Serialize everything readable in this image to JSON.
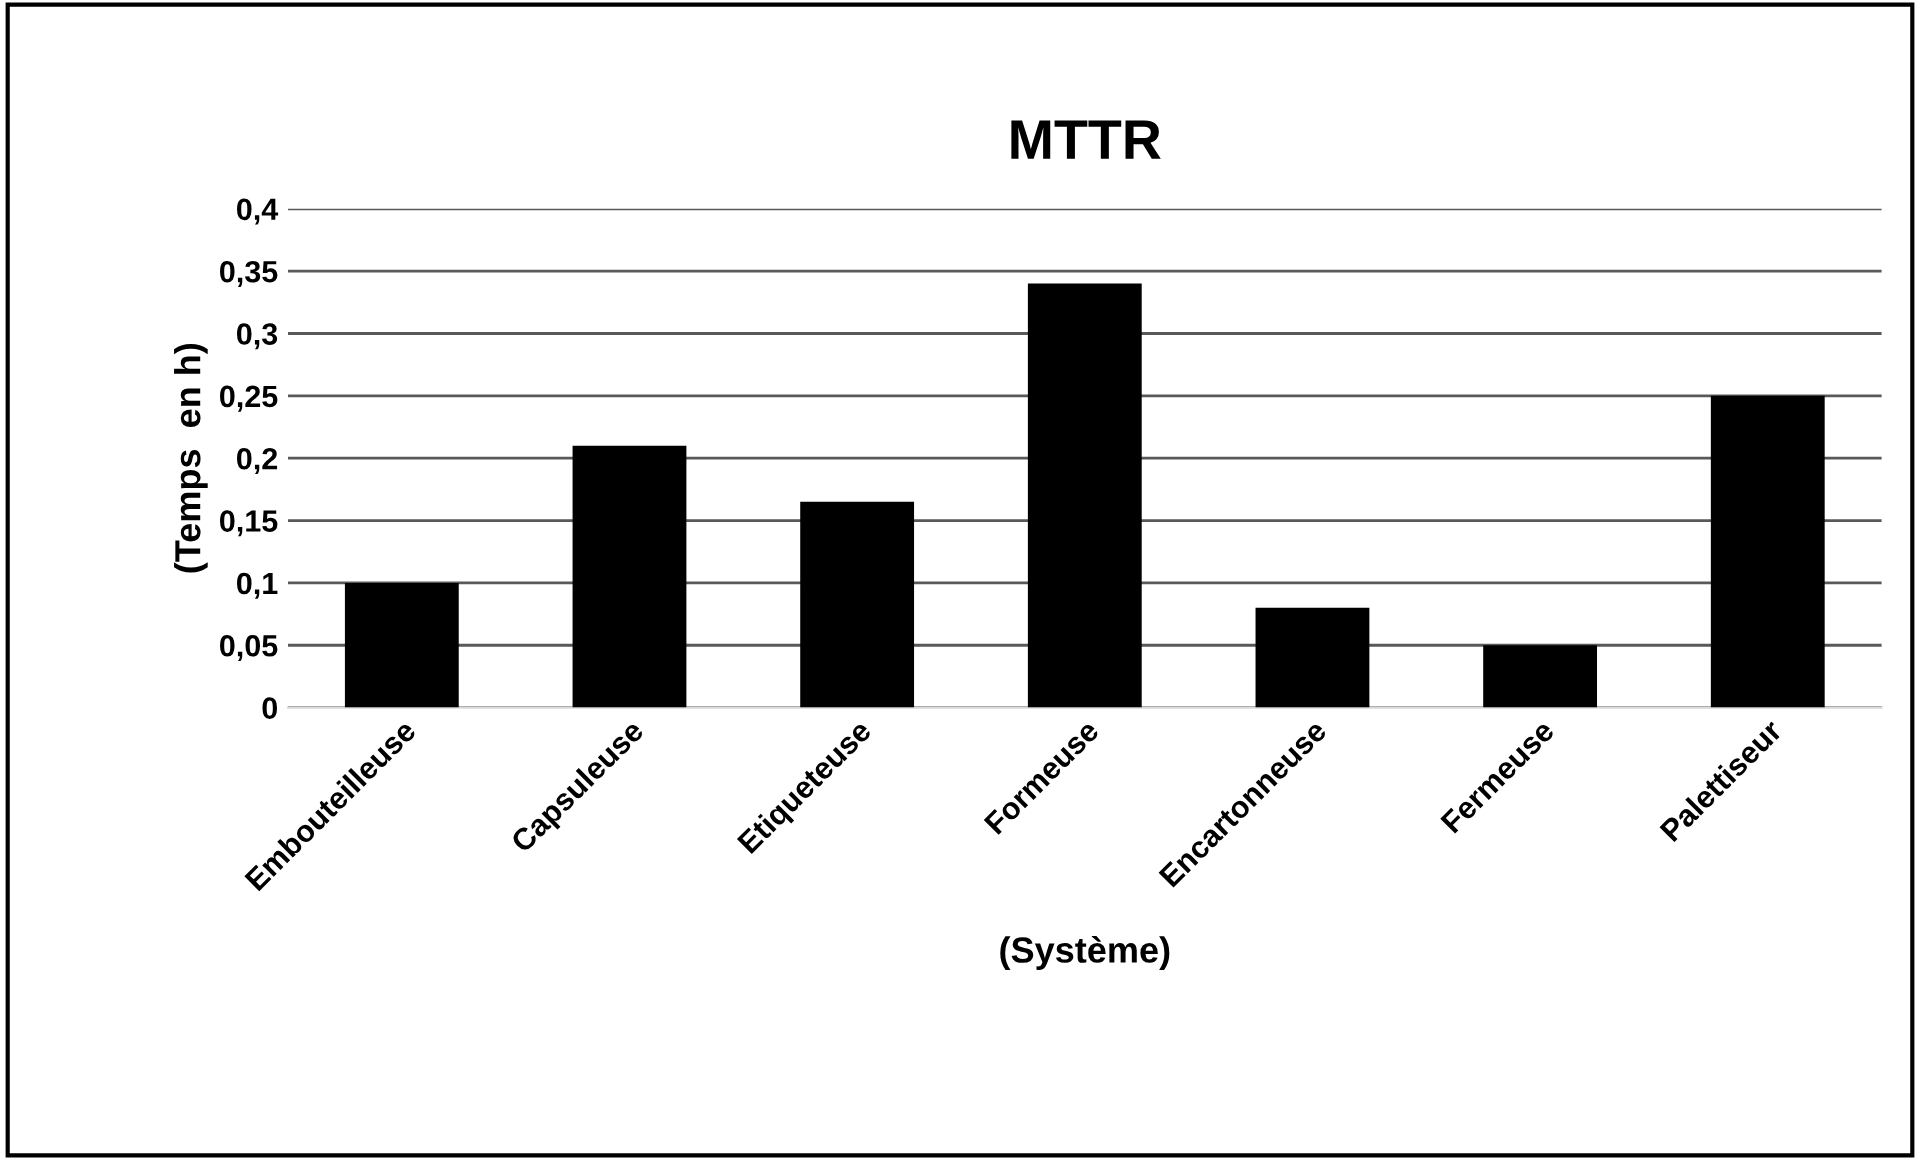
{
  "chart_data": {
    "type": "bar",
    "title": "MTTR",
    "xlabel": "(Système)",
    "ylabel": "(Temps  en h)",
    "categories": [
      "Embouteilleuse",
      "Capsuleuse",
      "Etiqueteuse",
      "Formeuse",
      "Encartonneuse",
      "Fermeuse",
      "Palettiseur"
    ],
    "values": [
      0.1,
      0.21,
      0.165,
      0.34,
      0.08,
      0.05,
      0.25
    ],
    "color": "#000000",
    "ylim": [
      0,
      0.4
    ],
    "yticks": [
      0,
      {
        "value": 0.05,
        "label": "0,05"
      },
      {
        "value": 0.1,
        "label": "0,1"
      },
      {
        "value": 0.15,
        "label": "0,15"
      },
      {
        "value": 0.2,
        "label": "0,2"
      },
      {
        "value": 0.25,
        "label": "0,25"
      },
      {
        "value": 0.3,
        "label": "0,3"
      },
      {
        "value": 0.35,
        "label": "0,35"
      },
      {
        "value": 0.4,
        "label": "0,4"
      }
    ],
    "grid": "y"
  }
}
